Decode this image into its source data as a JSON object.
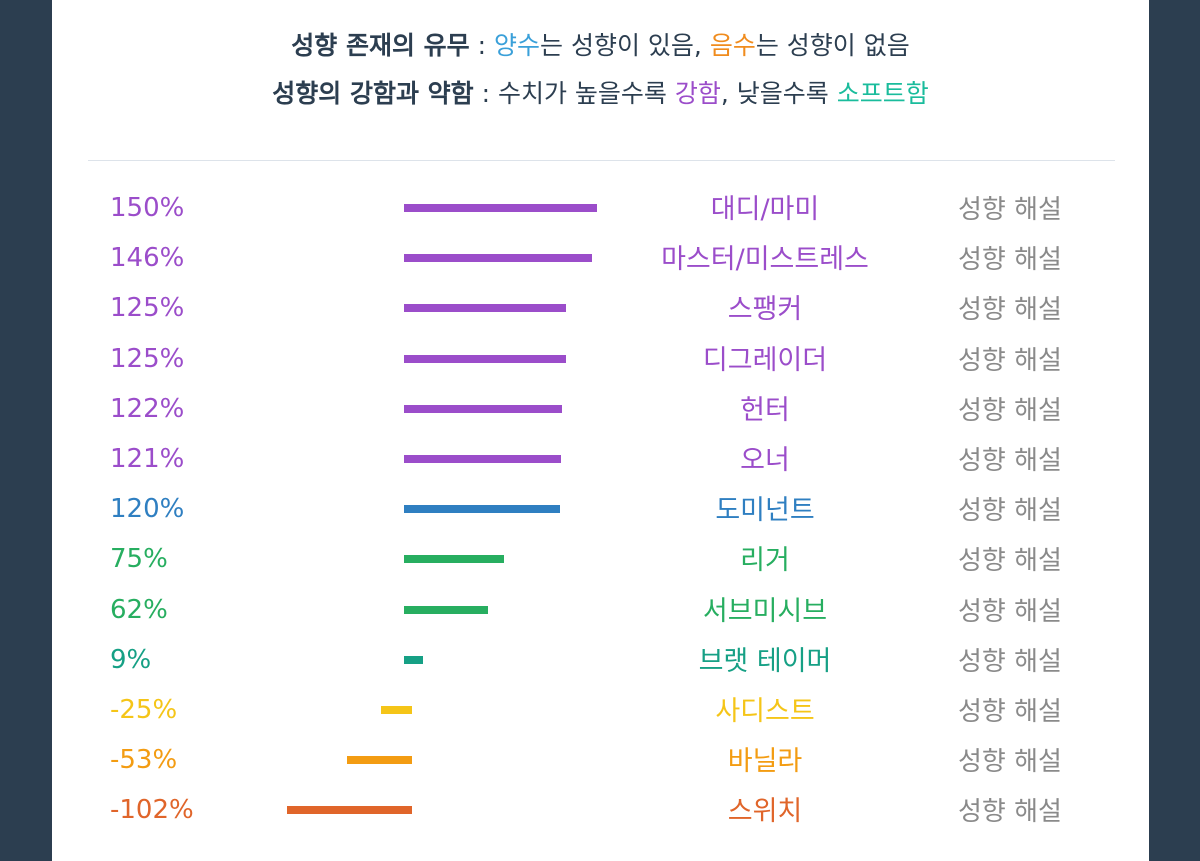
{
  "header": {
    "line1": {
      "term": "성향 존재의 유무",
      "sep": " : ",
      "pos_word": "양수",
      "mid": "는 성향이 있음, ",
      "neg_word": "음수",
      "end": "는 성향이 없음"
    },
    "line2": {
      "term": "성향의 강함과 약함",
      "sep": " : 수치가 높을수록 ",
      "strong_word": "강함",
      "mid": ", 낮을수록 ",
      "soft_word": "소프트함"
    }
  },
  "colors": {
    "text_dark": "#2c3e50",
    "positive": "#3aa0d9",
    "negative": "#f08c1e",
    "strong": "#9b4dca",
    "soft": "#1abc9c"
  },
  "chart_data": {
    "type": "bar",
    "orientation": "horizontal",
    "categories": [
      "대디/마미",
      "마스터/미스트레스",
      "스팽커",
      "디그레이더",
      "헌터",
      "오너",
      "도미넌트",
      "리거",
      "서브미시브",
      "브랫 테이머",
      "사디스트",
      "바닐라",
      "스위치"
    ],
    "values": [
      150,
      146,
      125,
      125,
      122,
      121,
      120,
      75,
      62,
      9,
      -25,
      -53,
      -102
    ],
    "value_labels": [
      "150%",
      "146%",
      "125%",
      "125%",
      "122%",
      "121%",
      "120%",
      "75%",
      "62%",
      "9%",
      "-25%",
      "-53%",
      "-102%"
    ],
    "colors": [
      "#9b4dca",
      "#9b4dca",
      "#9b4dca",
      "#9b4dca",
      "#9b4dca",
      "#9b4dca",
      "#2f7fc1",
      "#27ae60",
      "#27ae60",
      "#16a085",
      "#f5c518",
      "#f39c12",
      "#e0652a"
    ],
    "link_label": "성향 해설",
    "grid": false
  }
}
